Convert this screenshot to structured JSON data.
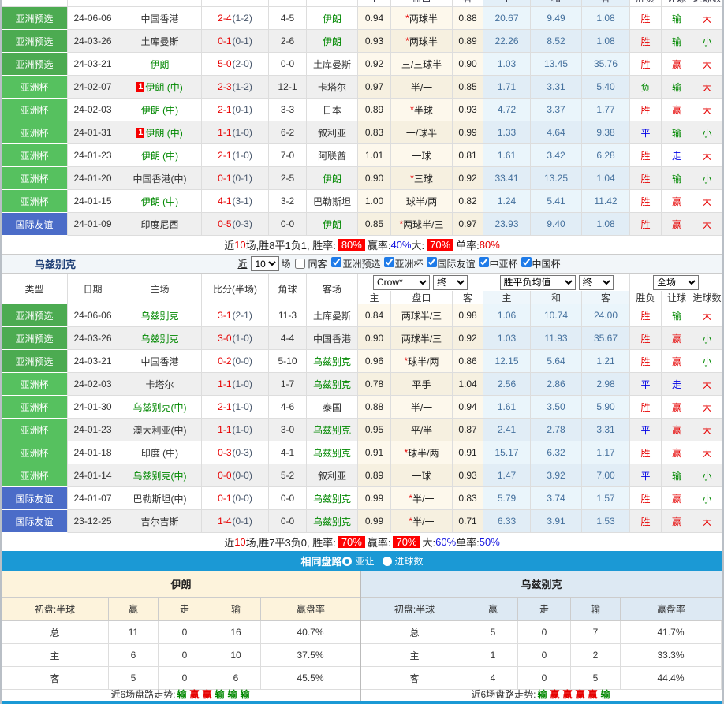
{
  "colors": {
    "badge_green_dark": "#4cab51",
    "badge_green": "#56c15f",
    "badge_blue": "#4b6cc8",
    "bar_blue": "#1b99d5",
    "summary_badge_red": "#fe0000"
  },
  "table_header": {
    "left_cols": [
      "类型",
      "日期",
      "主场",
      "比分(半场)",
      "角球",
      "客场"
    ],
    "sub_cols": [
      "主",
      "盘口",
      "客",
      "主",
      "和",
      "客",
      "胜负",
      "让球",
      "进球数"
    ],
    "dropdowns": {
      "company": "Crow*",
      "final1": "终",
      "avg": "胜平负均值",
      "final2": "终",
      "scope": "全场"
    }
  },
  "iran": {
    "rows": [
      {
        "type": "亚洲预选",
        "date": "24-06-06",
        "home": "中国香港",
        "hg": false,
        "hc": "",
        "score": "2-4",
        "half": "(1-2)",
        "corner": "4-5",
        "away": "伊朗",
        "ag": true,
        "o1": "0.94",
        "hcap": "*两球半",
        "o2": "0.88",
        "e1": "20.67",
        "e2": "9.49",
        "e3": "1.08",
        "r1": "胜",
        "r2": "输",
        "r3": "大"
      },
      {
        "type": "亚洲预选",
        "date": "24-03-26",
        "home": "土库曼斯",
        "hg": false,
        "hc": "",
        "score": "0-1",
        "half": "(0-1)",
        "corner": "2-6",
        "away": "伊朗",
        "ag": true,
        "o1": "0.93",
        "hcap": "*两球半",
        "o2": "0.89",
        "e1": "22.26",
        "e2": "8.52",
        "e3": "1.08",
        "r1": "胜",
        "r2": "输",
        "r3": "小"
      },
      {
        "type": "亚洲预选",
        "date": "24-03-21",
        "home": "伊朗",
        "hg": true,
        "hc": "",
        "score": "5-0",
        "half": "(2-0)",
        "corner": "0-0",
        "away": "土库曼斯",
        "ag": false,
        "o1": "0.92",
        "hcap": "三/三球半",
        "o2": "0.90",
        "e1": "1.03",
        "e2": "13.45",
        "e3": "35.76",
        "r1": "胜",
        "r2": "赢",
        "r3": "大"
      },
      {
        "type": "亚洲杯",
        "date": "24-02-07",
        "home": "伊朗 (中)",
        "hg": true,
        "hc": "1",
        "score": "2-3",
        "half": "(1-2)",
        "corner": "12-1",
        "away": "卡塔尔",
        "ag": false,
        "o1": "0.97",
        "hcap": "半/一",
        "o2": "0.85",
        "e1": "1.71",
        "e2": "3.31",
        "e3": "5.40",
        "r1": "负",
        "r2": "输",
        "r3": "大"
      },
      {
        "type": "亚洲杯",
        "date": "24-02-03",
        "home": "伊朗 (中)",
        "hg": true,
        "hc": "",
        "score": "2-1",
        "half": "(0-1)",
        "corner": "3-3",
        "away": "日本",
        "ag": false,
        "o1": "0.89",
        "hcap": "*半球",
        "o2": "0.93",
        "e1": "4.72",
        "e2": "3.37",
        "e3": "1.77",
        "r1": "胜",
        "r2": "赢",
        "r3": "大"
      },
      {
        "type": "亚洲杯",
        "date": "24-01-31",
        "home": "伊朗 (中)",
        "hg": true,
        "hc": "1",
        "score": "1-1",
        "half": "(1-0)",
        "corner": "6-2",
        "away": "叙利亚",
        "ag": false,
        "o1": "0.83",
        "hcap": "一/球半",
        "o2": "0.99",
        "e1": "1.33",
        "e2": "4.64",
        "e3": "9.38",
        "r1": "平",
        "r2": "输",
        "r3": "小"
      },
      {
        "type": "亚洲杯",
        "date": "24-01-23",
        "home": "伊朗 (中)",
        "hg": true,
        "hc": "",
        "score": "2-1",
        "half": "(1-0)",
        "corner": "7-0",
        "away": "阿联酋",
        "ag": false,
        "o1": "1.01",
        "hcap": "一球",
        "o2": "0.81",
        "e1": "1.61",
        "e2": "3.42",
        "e3": "6.28",
        "r1": "胜",
        "r2": "走",
        "r3": "大"
      },
      {
        "type": "亚洲杯",
        "date": "24-01-20",
        "home": "中国香港(中)",
        "hg": false,
        "hc": "",
        "score": "0-1",
        "half": "(0-1)",
        "corner": "2-5",
        "away": "伊朗",
        "ag": true,
        "o1": "0.90",
        "hcap": "*三球",
        "o2": "0.92",
        "e1": "33.41",
        "e2": "13.25",
        "e3": "1.04",
        "r1": "胜",
        "r2": "输",
        "r3": "小"
      },
      {
        "type": "亚洲杯",
        "date": "24-01-15",
        "home": "伊朗 (中)",
        "hg": true,
        "hc": "",
        "score": "4-1",
        "half": "(3-1)",
        "corner": "3-2",
        "away": "巴勒斯坦",
        "ag": false,
        "o1": "1.00",
        "hcap": "球半/两",
        "o2": "0.82",
        "e1": "1.24",
        "e2": "5.41",
        "e3": "11.42",
        "r1": "胜",
        "r2": "赢",
        "r3": "大"
      },
      {
        "type": "国际友谊",
        "date": "24-01-09",
        "home": "印度尼西",
        "hg": false,
        "hc": "",
        "score": "0-5",
        "half": "(0-3)",
        "corner": "0-0",
        "away": "伊朗",
        "ag": true,
        "o1": "0.85",
        "hcap": "*两球半/三",
        "o2": "0.97",
        "e1": "23.93",
        "e2": "9.40",
        "e3": "1.08",
        "r1": "胜",
        "r2": "赢",
        "r3": "大"
      }
    ],
    "summary": [
      {
        "t": "近",
        "c": "k"
      },
      {
        "t": "10",
        "c": "r"
      },
      {
        "t": "场,胜8平1负1, 胜率:",
        "c": "k"
      },
      {
        "t": "80%",
        "c": "badge"
      },
      {
        "t": " 赢率:",
        "c": "k"
      },
      {
        "t": "40%",
        "c": "b"
      },
      {
        "t": " 大:",
        "c": "k"
      },
      {
        "t": "70%",
        "c": "badge"
      },
      {
        "t": " 单率:",
        "c": "k"
      },
      {
        "t": "80%",
        "c": "r"
      }
    ]
  },
  "uzbek_section": {
    "title": "乌兹别克",
    "near": "近",
    "count": "10",
    "games": "场",
    "same_away": "同客",
    "filters": [
      "亚洲预选",
      "亚洲杯",
      "国际友谊",
      "中亚杯",
      "中国杯"
    ]
  },
  "uzbek": {
    "rows": [
      {
        "type": "亚洲预选",
        "date": "24-06-06",
        "home": "乌兹别克",
        "hg": true,
        "hc": "",
        "score": "3-1",
        "half": "(2-1)",
        "corner": "11-3",
        "away": "土库曼斯",
        "ag": false,
        "o1": "0.84",
        "hcap": "两球半/三",
        "o2": "0.98",
        "e1": "1.06",
        "e2": "10.74",
        "e3": "24.00",
        "r1": "胜",
        "r2": "输",
        "r3": "大"
      },
      {
        "type": "亚洲预选",
        "date": "24-03-26",
        "home": "乌兹别克",
        "hg": true,
        "hc": "",
        "score": "3-0",
        "half": "(1-0)",
        "corner": "4-4",
        "away": "中国香港",
        "ag": false,
        "o1": "0.90",
        "hcap": "两球半/三",
        "o2": "0.92",
        "e1": "1.03",
        "e2": "11.93",
        "e3": "35.67",
        "r1": "胜",
        "r2": "赢",
        "r3": "小"
      },
      {
        "type": "亚洲预选",
        "date": "24-03-21",
        "home": "中国香港",
        "hg": false,
        "hc": "",
        "score": "0-2",
        "half": "(0-0)",
        "corner": "5-10",
        "away": "乌兹别克",
        "ag": true,
        "o1": "0.96",
        "hcap": "*球半/两",
        "o2": "0.86",
        "e1": "12.15",
        "e2": "5.64",
        "e3": "1.21",
        "r1": "胜",
        "r2": "赢",
        "r3": "小"
      },
      {
        "type": "亚洲杯",
        "date": "24-02-03",
        "home": "卡塔尔",
        "hg": false,
        "hc": "",
        "score": "1-1",
        "half": "(1-0)",
        "corner": "1-7",
        "away": "乌兹别克",
        "ag": true,
        "o1": "0.78",
        "hcap": "平手",
        "o2": "1.04",
        "e1": "2.56",
        "e2": "2.86",
        "e3": "2.98",
        "r1": "平",
        "r2": "走",
        "r3": "大"
      },
      {
        "type": "亚洲杯",
        "date": "24-01-30",
        "home": "乌兹别克(中)",
        "hg": true,
        "hc": "",
        "score": "2-1",
        "half": "(1-0)",
        "corner": "4-6",
        "away": "泰国",
        "ag": false,
        "o1": "0.88",
        "hcap": "半/一",
        "o2": "0.94",
        "e1": "1.61",
        "e2": "3.50",
        "e3": "5.90",
        "r1": "胜",
        "r2": "赢",
        "r3": "大"
      },
      {
        "type": "亚洲杯",
        "date": "24-01-23",
        "home": "澳大利亚(中)",
        "hg": false,
        "hc": "",
        "score": "1-1",
        "half": "(1-0)",
        "corner": "3-0",
        "away": "乌兹别克",
        "ag": true,
        "o1": "0.95",
        "hcap": "平/半",
        "o2": "0.87",
        "e1": "2.41",
        "e2": "2.78",
        "e3": "3.31",
        "r1": "平",
        "r2": "赢",
        "r3": "大"
      },
      {
        "type": "亚洲杯",
        "date": "24-01-18",
        "home": "印度 (中)",
        "hg": false,
        "hc": "",
        "score": "0-3",
        "half": "(0-3)",
        "corner": "4-1",
        "away": "乌兹别克",
        "ag": true,
        "o1": "0.91",
        "hcap": "*球半/两",
        "o2": "0.91",
        "e1": "15.17",
        "e2": "6.32",
        "e3": "1.17",
        "r1": "胜",
        "r2": "赢",
        "r3": "大"
      },
      {
        "type": "亚洲杯",
        "date": "24-01-14",
        "home": "乌兹别克(中)",
        "hg": true,
        "hc": "",
        "score": "0-0",
        "half": "(0-0)",
        "corner": "5-2",
        "away": "叙利亚",
        "ag": false,
        "o1": "0.89",
        "hcap": "一球",
        "o2": "0.93",
        "e1": "1.47",
        "e2": "3.92",
        "e3": "7.00",
        "r1": "平",
        "r2": "输",
        "r3": "小"
      },
      {
        "type": "国际友谊",
        "date": "24-01-07",
        "home": "巴勒斯坦(中)",
        "hg": false,
        "hc": "",
        "score": "0-1",
        "half": "(0-0)",
        "corner": "0-0",
        "away": "乌兹别克",
        "ag": true,
        "o1": "0.99",
        "hcap": "*半/一",
        "o2": "0.83",
        "e1": "5.79",
        "e2": "3.74",
        "e3": "1.57",
        "r1": "胜",
        "r2": "赢",
        "r3": "小"
      },
      {
        "type": "国际友谊",
        "date": "23-12-25",
        "home": "吉尔吉斯",
        "hg": false,
        "hc": "",
        "score": "1-4",
        "half": "(0-1)",
        "corner": "0-0",
        "away": "乌兹别克",
        "ag": true,
        "o1": "0.99",
        "hcap": "*半/一",
        "o2": "0.71",
        "e1": "6.33",
        "e2": "3.91",
        "e3": "1.53",
        "r1": "胜",
        "r2": "赢",
        "r3": "大"
      }
    ],
    "summary": [
      {
        "t": "近",
        "c": "k"
      },
      {
        "t": "10",
        "c": "r"
      },
      {
        "t": "场,胜7平3负0, 胜率:",
        "c": "k"
      },
      {
        "t": "70%",
        "c": "badge"
      },
      {
        "t": " 赢率:",
        "c": "k"
      },
      {
        "t": "70%",
        "c": "badge"
      },
      {
        "t": " 大:",
        "c": "k"
      },
      {
        "t": "60%",
        "c": "b"
      },
      {
        "t": " 单率:",
        "c": "k"
      },
      {
        "t": "50%",
        "c": "b"
      }
    ]
  },
  "compare": {
    "title": "相同盘路",
    "radio1": "亚让",
    "radio2": "进球数",
    "panels": [
      {
        "team": "伊朗",
        "theme": "cream",
        "initial": "初盘:半球",
        "cols": [
          "赢",
          "走",
          "输",
          "赢盘率"
        ],
        "rows": [
          [
            "总",
            "11",
            "0",
            "16",
            "40.7%"
          ],
          [
            "主",
            "6",
            "0",
            "10",
            "37.5%"
          ],
          [
            "客",
            "5",
            "0",
            "6",
            "45.5%"
          ]
        ],
        "trend_label": "近6场盘路走势:",
        "trend": [
          "输",
          "赢",
          "赢",
          "输",
          "输",
          "输"
        ]
      },
      {
        "team": "乌兹别克",
        "theme": "blue",
        "initial": "初盘:半球",
        "cols": [
          "赢",
          "走",
          "输",
          "赢盘率"
        ],
        "rows": [
          [
            "总",
            "5",
            "0",
            "7",
            "41.7%"
          ],
          [
            "主",
            "1",
            "0",
            "2",
            "33.3%"
          ],
          [
            "客",
            "4",
            "0",
            "5",
            "44.4%"
          ]
        ],
        "trend_label": "近6场盘路走势:",
        "trend": [
          "输",
          "赢",
          "赢",
          "赢",
          "赢",
          "输"
        ]
      }
    ]
  }
}
